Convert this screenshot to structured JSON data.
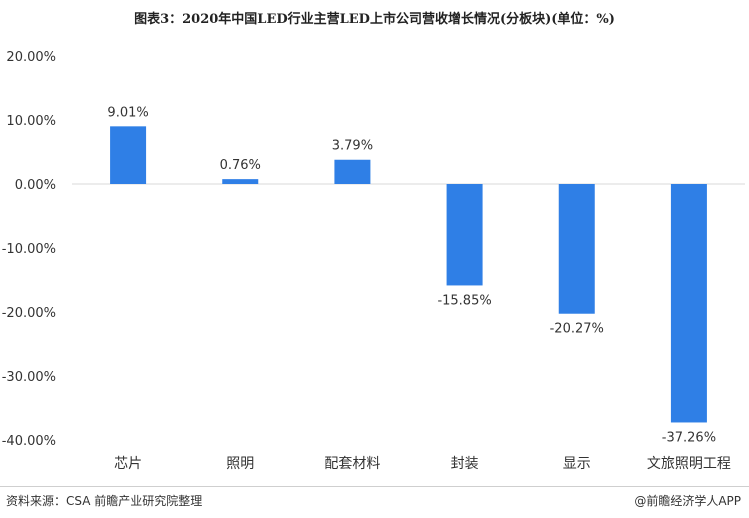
{
  "title": "图表3：2020年中国LED行业主营LED上市公司营收增长情况(分板块)(单位：%)",
  "footer": {
    "source": "资料来源：CSA 前瞻产业研究院整理",
    "brand": "@前瞻经济学人APP"
  },
  "colors": {
    "bar": "#2f7fe6",
    "axis": "#d9d9d9"
  },
  "chart_data": {
    "type": "bar",
    "title": "图表3：2020年中国LED行业主营LED上市公司营收增长情况(分板块)(单位：%)",
    "categories": [
      "芯片",
      "照明",
      "配套材料",
      "封装",
      "显示",
      "文旅照明工程"
    ],
    "values": [
      9.01,
      0.76,
      3.79,
      -15.85,
      -20.27,
      -37.26
    ],
    "value_labels": [
      "9.01%",
      "0.76%",
      "3.79%",
      "-15.85%",
      "-20.27%",
      "-37.26%"
    ],
    "ylim": [
      -40,
      20
    ],
    "yticks": [
      20,
      10,
      0,
      -10,
      -20,
      -30,
      -40
    ],
    "ytick_labels": [
      "20.00%",
      "10.00%",
      "0.00%",
      "-10.00%",
      "-20.00%",
      "-30.00%",
      "-40.00%"
    ],
    "grid": false,
    "legend": "none"
  }
}
